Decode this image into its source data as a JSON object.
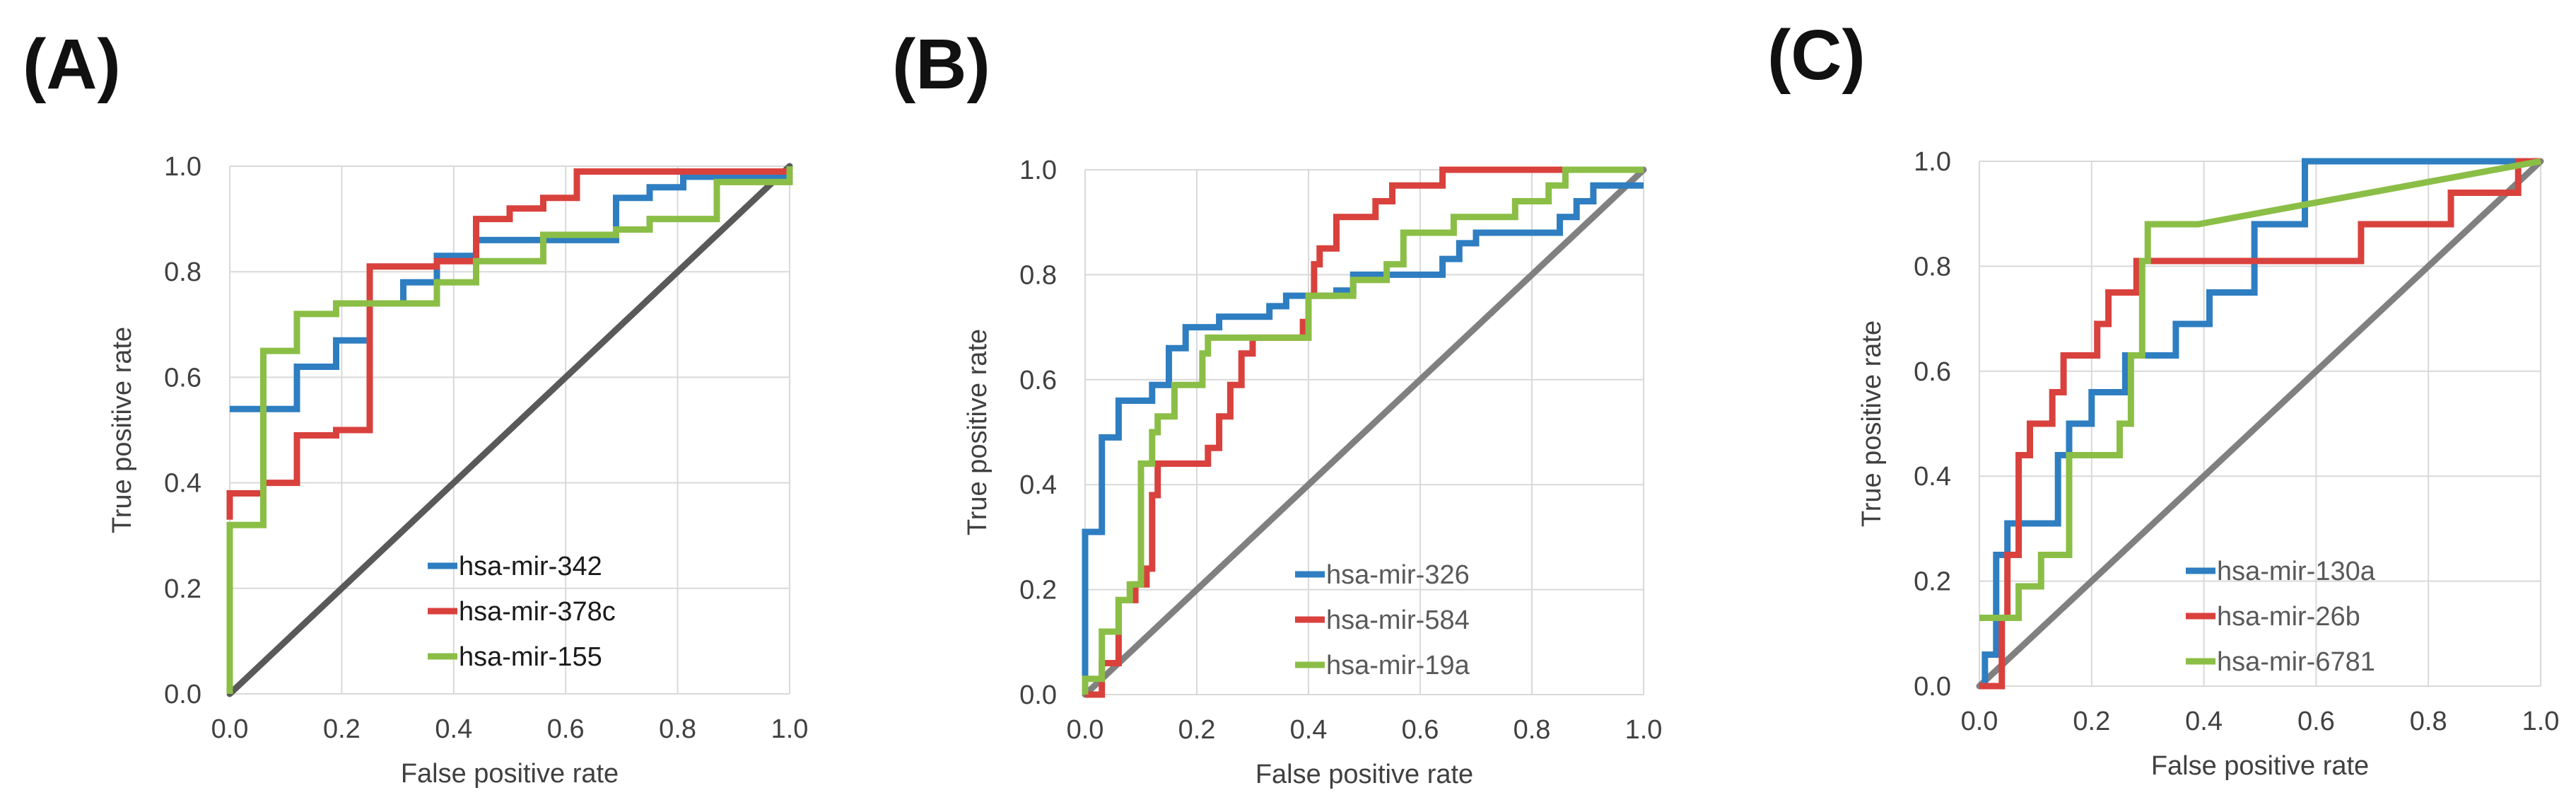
{
  "chart_data": [
    {
      "panel_label": "(A)",
      "type": "line",
      "xlabel": "False positive rate",
      "ylabel": "True positive rate",
      "xlim": [
        0,
        1
      ],
      "ylim": [
        0,
        1
      ],
      "x_ticks": [
        "0.0",
        "0.2",
        "0.4",
        "0.6",
        "0.8",
        "1.0"
      ],
      "y_ticks": [
        "0.0",
        "0.2",
        "0.4",
        "0.6",
        "0.8",
        "1.0"
      ],
      "grid": true,
      "legend_position": "bottom-center",
      "diagonal": {
        "color": "#595959",
        "points": [
          [
            0,
            0
          ],
          [
            1,
            1
          ]
        ]
      },
      "series": [
        {
          "name": "hsa-mir-342",
          "color": "#2E7EC1",
          "points": [
            [
              0,
              0.54
            ],
            [
              0.12,
              0.54
            ],
            [
              0.12,
              0.62
            ],
            [
              0.19,
              0.62
            ],
            [
              0.19,
              0.67
            ],
            [
              0.25,
              0.67
            ],
            [
              0.25,
              0.74
            ],
            [
              0.31,
              0.74
            ],
            [
              0.31,
              0.78
            ],
            [
              0.37,
              0.78
            ],
            [
              0.37,
              0.83
            ],
            [
              0.44,
              0.83
            ],
            [
              0.44,
              0.86
            ],
            [
              0.69,
              0.86
            ],
            [
              0.69,
              0.94
            ],
            [
              0.75,
              0.94
            ],
            [
              0.75,
              0.96
            ],
            [
              0.81,
              0.96
            ],
            [
              0.81,
              0.98
            ],
            [
              1,
              0.98
            ]
          ]
        },
        {
          "name": "hsa-mir-378c",
          "color": "#D9413D",
          "points": [
            [
              0,
              0.33
            ],
            [
              0,
              0.38
            ],
            [
              0.06,
              0.38
            ],
            [
              0.06,
              0.4
            ],
            [
              0.12,
              0.4
            ],
            [
              0.12,
              0.49
            ],
            [
              0.19,
              0.49
            ],
            [
              0.19,
              0.5
            ],
            [
              0.25,
              0.5
            ],
            [
              0.25,
              0.81
            ],
            [
              0.37,
              0.81
            ],
            [
              0.37,
              0.82
            ],
            [
              0.44,
              0.82
            ],
            [
              0.44,
              0.9
            ],
            [
              0.5,
              0.9
            ],
            [
              0.5,
              0.92
            ],
            [
              0.56,
              0.92
            ],
            [
              0.56,
              0.94
            ],
            [
              0.62,
              0.94
            ],
            [
              0.62,
              0.99
            ],
            [
              1,
              0.99
            ]
          ]
        },
        {
          "name": "hsa-mir-155",
          "color": "#8BBE46",
          "points": [
            [
              0,
              0
            ],
            [
              0,
              0.32
            ],
            [
              0.06,
              0.32
            ],
            [
              0.06,
              0.65
            ],
            [
              0.12,
              0.65
            ],
            [
              0.12,
              0.72
            ],
            [
              0.19,
              0.72
            ],
            [
              0.19,
              0.74
            ],
            [
              0.37,
              0.74
            ],
            [
              0.37,
              0.78
            ],
            [
              0.44,
              0.78
            ],
            [
              0.44,
              0.82
            ],
            [
              0.56,
              0.82
            ],
            [
              0.56,
              0.87
            ],
            [
              0.69,
              0.87
            ],
            [
              0.69,
              0.88
            ],
            [
              0.75,
              0.88
            ],
            [
              0.75,
              0.9
            ],
            [
              0.87,
              0.9
            ],
            [
              0.87,
              0.97
            ],
            [
              1,
              0.97
            ],
            [
              1,
              1
            ]
          ]
        }
      ]
    },
    {
      "panel_label": "(B)",
      "type": "line",
      "xlabel": "False positive rate",
      "ylabel": "True positive rate",
      "xlim": [
        0,
        1
      ],
      "ylim": [
        0,
        1
      ],
      "x_ticks": [
        "0.0",
        "0.2",
        "0.4",
        "0.6",
        "0.8",
        "1.0"
      ],
      "y_ticks": [
        "0.0",
        "0.2",
        "0.4",
        "0.6",
        "0.8",
        "1.0"
      ],
      "grid": true,
      "legend_position": "bottom-center",
      "diagonal": {
        "color": "#808080",
        "points": [
          [
            0,
            0
          ],
          [
            1,
            1
          ]
        ]
      },
      "series": [
        {
          "name": "hsa-mir-326",
          "color": "#2E7EC1",
          "points": [
            [
              0,
              0
            ],
            [
              0,
              0.31
            ],
            [
              0.03,
              0.31
            ],
            [
              0.03,
              0.49
            ],
            [
              0.06,
              0.49
            ],
            [
              0.06,
              0.56
            ],
            [
              0.12,
              0.56
            ],
            [
              0.12,
              0.59
            ],
            [
              0.15,
              0.59
            ],
            [
              0.15,
              0.66
            ],
            [
              0.18,
              0.66
            ],
            [
              0.18,
              0.7
            ],
            [
              0.24,
              0.7
            ],
            [
              0.24,
              0.72
            ],
            [
              0.33,
              0.72
            ],
            [
              0.33,
              0.74
            ],
            [
              0.36,
              0.74
            ],
            [
              0.36,
              0.76
            ],
            [
              0.45,
              0.76
            ],
            [
              0.45,
              0.77
            ],
            [
              0.48,
              0.77
            ],
            [
              0.48,
              0.8
            ],
            [
              0.64,
              0.8
            ],
            [
              0.64,
              0.83
            ],
            [
              0.67,
              0.83
            ],
            [
              0.67,
              0.86
            ],
            [
              0.7,
              0.86
            ],
            [
              0.7,
              0.88
            ],
            [
              0.85,
              0.88
            ],
            [
              0.85,
              0.91
            ],
            [
              0.88,
              0.91
            ],
            [
              0.88,
              0.94
            ],
            [
              0.91,
              0.94
            ],
            [
              0.91,
              0.97
            ],
            [
              1,
              0.97
            ]
          ]
        },
        {
          "name": "hsa-mir-584",
          "color": "#D9413D",
          "points": [
            [
              0,
              0
            ],
            [
              0.03,
              0
            ],
            [
              0.03,
              0.06
            ],
            [
              0.06,
              0.06
            ],
            [
              0.06,
              0.18
            ],
            [
              0.09,
              0.18
            ],
            [
              0.09,
              0.21
            ],
            [
              0.11,
              0.21
            ],
            [
              0.11,
              0.24
            ],
            [
              0.12,
              0.24
            ],
            [
              0.12,
              0.38
            ],
            [
              0.13,
              0.38
            ],
            [
              0.13,
              0.44
            ],
            [
              0.22,
              0.44
            ],
            [
              0.22,
              0.47
            ],
            [
              0.24,
              0.47
            ],
            [
              0.24,
              0.53
            ],
            [
              0.26,
              0.53
            ],
            [
              0.26,
              0.59
            ],
            [
              0.28,
              0.59
            ],
            [
              0.28,
              0.65
            ],
            [
              0.3,
              0.65
            ],
            [
              0.3,
              0.68
            ],
            [
              0.39,
              0.68
            ],
            [
              0.39,
              0.71
            ],
            [
              0.4,
              0.71
            ],
            [
              0.4,
              0.76
            ],
            [
              0.41,
              0.76
            ],
            [
              0.41,
              0.82
            ],
            [
              0.42,
              0.82
            ],
            [
              0.42,
              0.85
            ],
            [
              0.45,
              0.85
            ],
            [
              0.45,
              0.91
            ],
            [
              0.52,
              0.91
            ],
            [
              0.52,
              0.94
            ],
            [
              0.55,
              0.94
            ],
            [
              0.55,
              0.97
            ],
            [
              0.64,
              0.97
            ],
            [
              0.64,
              1
            ],
            [
              1,
              1
            ]
          ]
        },
        {
          "name": "hsa-mir-19a",
          "color": "#8BBE46",
          "points": [
            [
              0,
              0
            ],
            [
              0,
              0.03
            ],
            [
              0.03,
              0.03
            ],
            [
              0.03,
              0.12
            ],
            [
              0.06,
              0.12
            ],
            [
              0.06,
              0.18
            ],
            [
              0.08,
              0.18
            ],
            [
              0.08,
              0.21
            ],
            [
              0.1,
              0.21
            ],
            [
              0.1,
              0.44
            ],
            [
              0.12,
              0.44
            ],
            [
              0.12,
              0.5
            ],
            [
              0.13,
              0.5
            ],
            [
              0.13,
              0.53
            ],
            [
              0.16,
              0.53
            ],
            [
              0.16,
              0.59
            ],
            [
              0.21,
              0.59
            ],
            [
              0.21,
              0.65
            ],
            [
              0.22,
              0.65
            ],
            [
              0.22,
              0.68
            ],
            [
              0.4,
              0.68
            ],
            [
              0.4,
              0.76
            ],
            [
              0.48,
              0.76
            ],
            [
              0.48,
              0.79
            ],
            [
              0.54,
              0.79
            ],
            [
              0.54,
              0.82
            ],
            [
              0.57,
              0.82
            ],
            [
              0.57,
              0.88
            ],
            [
              0.66,
              0.88
            ],
            [
              0.66,
              0.91
            ],
            [
              0.77,
              0.91
            ],
            [
              0.77,
              0.94
            ],
            [
              0.83,
              0.94
            ],
            [
              0.83,
              0.97
            ],
            [
              0.86,
              0.97
            ],
            [
              0.86,
              1
            ],
            [
              1,
              1
            ]
          ]
        }
      ]
    },
    {
      "panel_label": "(C)",
      "type": "line",
      "xlabel": "False positive rate",
      "ylabel": "True positive rate",
      "xlim": [
        0,
        1
      ],
      "ylim": [
        0,
        1
      ],
      "x_ticks": [
        "0.0",
        "0.2",
        "0.4",
        "0.6",
        "0.8",
        "1.0"
      ],
      "y_ticks": [
        "0.0",
        "0.2",
        "0.4",
        "0.6",
        "0.8",
        "1.0"
      ],
      "grid": true,
      "legend_position": "bottom-center",
      "diagonal": {
        "color": "#808080",
        "points": [
          [
            0,
            0
          ],
          [
            1,
            1
          ]
        ]
      },
      "series": [
        {
          "name": "hsa-mir-130a",
          "color": "#2E7EC1",
          "points": [
            [
              0,
              0
            ],
            [
              0.01,
              0
            ],
            [
              0.01,
              0.06
            ],
            [
              0.03,
              0.06
            ],
            [
              0.03,
              0.25
            ],
            [
              0.05,
              0.25
            ],
            [
              0.05,
              0.31
            ],
            [
              0.14,
              0.31
            ],
            [
              0.14,
              0.44
            ],
            [
              0.16,
              0.44
            ],
            [
              0.16,
              0.5
            ],
            [
              0.2,
              0.5
            ],
            [
              0.2,
              0.56
            ],
            [
              0.26,
              0.56
            ],
            [
              0.26,
              0.63
            ],
            [
              0.35,
              0.63
            ],
            [
              0.35,
              0.69
            ],
            [
              0.41,
              0.69
            ],
            [
              0.41,
              0.75
            ],
            [
              0.49,
              0.75
            ],
            [
              0.49,
              0.88
            ],
            [
              0.58,
              0.88
            ],
            [
              0.58,
              1
            ],
            [
              1,
              1
            ]
          ]
        },
        {
          "name": "hsa-mir-26b",
          "color": "#D9413D",
          "points": [
            [
              0,
              0
            ],
            [
              0.04,
              0
            ],
            [
              0.04,
              0.13
            ],
            [
              0.05,
              0.13
            ],
            [
              0.05,
              0.25
            ],
            [
              0.07,
              0.25
            ],
            [
              0.07,
              0.44
            ],
            [
              0.09,
              0.44
            ],
            [
              0.09,
              0.5
            ],
            [
              0.13,
              0.5
            ],
            [
              0.13,
              0.56
            ],
            [
              0.15,
              0.56
            ],
            [
              0.15,
              0.63
            ],
            [
              0.21,
              0.63
            ],
            [
              0.21,
              0.69
            ],
            [
              0.23,
              0.69
            ],
            [
              0.23,
              0.75
            ],
            [
              0.28,
              0.75
            ],
            [
              0.28,
              0.81
            ],
            [
              0.68,
              0.81
            ],
            [
              0.68,
              0.88
            ],
            [
              0.84,
              0.88
            ],
            [
              0.84,
              0.94
            ],
            [
              0.96,
              0.94
            ],
            [
              0.96,
              1
            ],
            [
              1,
              1
            ]
          ]
        },
        {
          "name": "hsa-mir-6781",
          "color": "#8BBE46",
          "points": [
            [
              0,
              0.13
            ],
            [
              0.07,
              0.13
            ],
            [
              0.07,
              0.19
            ],
            [
              0.11,
              0.19
            ],
            [
              0.11,
              0.25
            ],
            [
              0.16,
              0.25
            ],
            [
              0.16,
              0.44
            ],
            [
              0.25,
              0.44
            ],
            [
              0.25,
              0.5
            ],
            [
              0.27,
              0.5
            ],
            [
              0.27,
              0.63
            ],
            [
              0.29,
              0.63
            ],
            [
              0.29,
              0.81
            ],
            [
              0.3,
              0.81
            ],
            [
              0.3,
              0.88
            ],
            [
              0.39,
              0.88
            ],
            [
              1,
              1
            ]
          ]
        }
      ]
    }
  ]
}
